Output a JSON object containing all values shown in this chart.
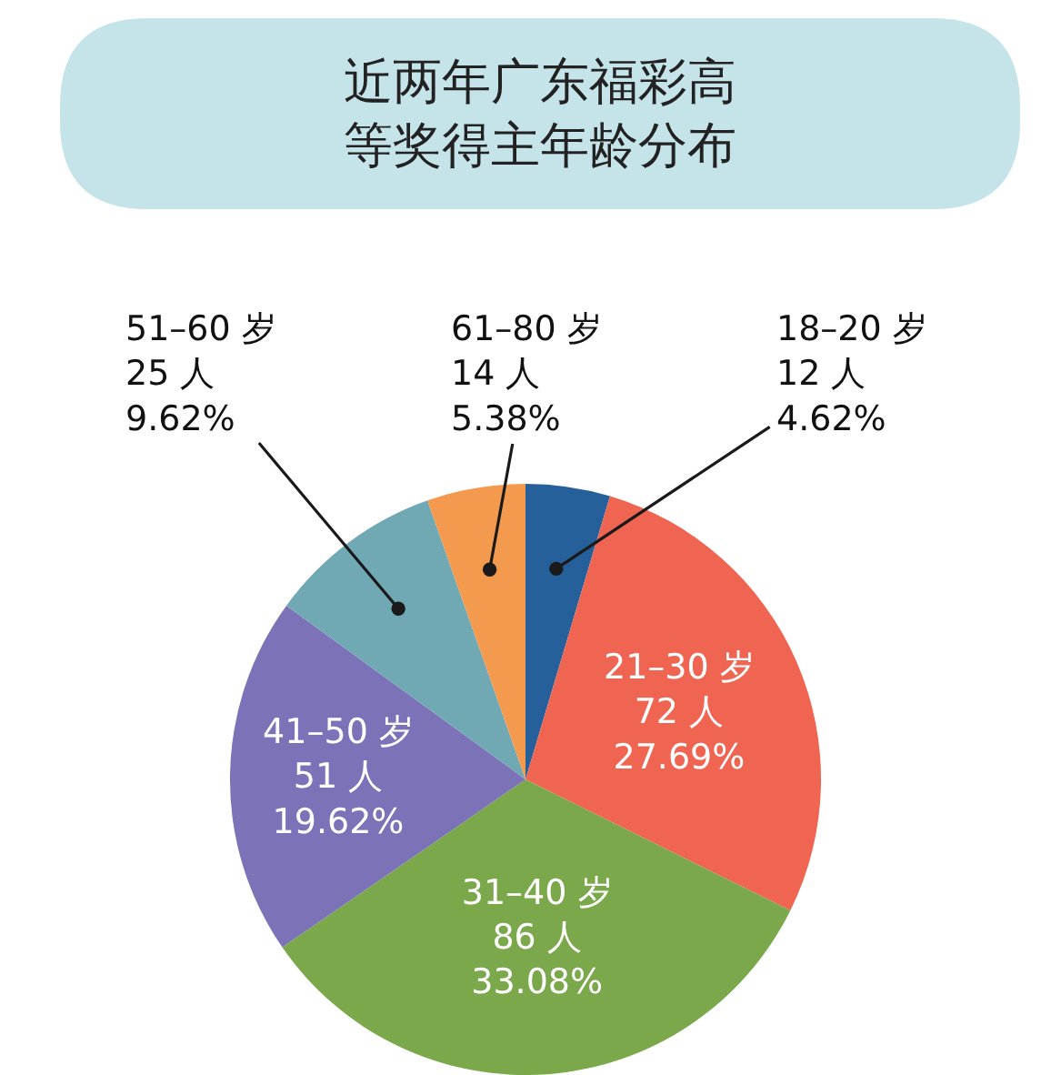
{
  "chart_data": {
    "type": "pie",
    "title": "近两年广东福彩高等奖得主年龄分布",
    "categories": [
      "18–20 岁",
      "21–30 岁",
      "31–40 岁",
      "41–50 岁",
      "51–60 岁",
      "61–80 岁"
    ],
    "values": [
      12,
      72,
      86,
      51,
      25,
      14
    ],
    "value_labels": [
      "12 人\n4.62%",
      "72 人\n27.69%",
      "86 人\n33.08%",
      "51 人\n19.62%",
      "25 人\n9.62%",
      "14 人\n5.38%"
    ],
    "colors": [
      "#25609a",
      "#ef6552",
      "#7aa84a",
      "#7b72b8",
      "#70a8b4",
      "#f39a4e"
    ],
    "legend": false
  }
}
